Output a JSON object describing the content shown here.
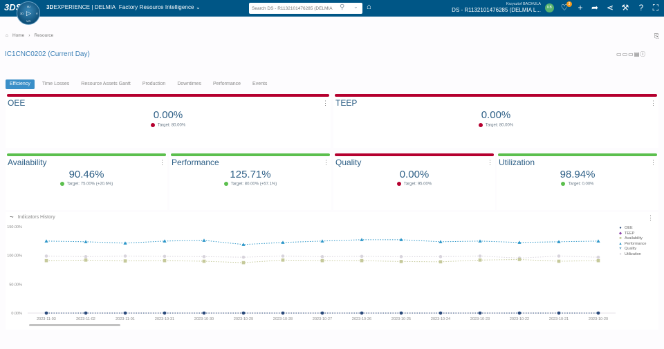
{
  "topbar": {
    "brand_logo": "3DS",
    "compass": {
      "top": "i/U",
      "left": "3D",
      "right": "V",
      "bottom": "V,R"
    },
    "app_prefix": "3D",
    "app_brand": "EXPERIENCE | DELMIA",
    "app_name": "Factory Resource Intelligence",
    "search_placeholder": "Search DS - R1132101476285 (DELMIA",
    "user_name": "Krzysztof BACHULA",
    "tenant": "DS - R1132101476285 (DELMIA L...",
    "avatar_initials": "KB",
    "notification_count": "3"
  },
  "breadcrumb": {
    "home": "Home",
    "separator": "›",
    "current": "Resource"
  },
  "page": {
    "title": "IC1CNC0202 (Current Day)"
  },
  "tabs": [
    {
      "label": "Efficiency",
      "active": true
    },
    {
      "label": "Time Losses"
    },
    {
      "label": "Resource Assets Gantt"
    },
    {
      "label": "Production"
    },
    {
      "label": "Downtimes"
    },
    {
      "label": "Performance"
    },
    {
      "label": "Events"
    }
  ],
  "colors": {
    "good": "#5cbf4e",
    "bad": "#b5002f",
    "header": "#005686",
    "accent": "#3a8fc8"
  },
  "kpis": {
    "oee": {
      "title": "OEE",
      "value": "0.00%",
      "target": "Target: 80.00%",
      "status": "bad"
    },
    "teep": {
      "title": "TEEP",
      "value": "0.00%",
      "target": "Target: 80.00%",
      "status": "bad"
    },
    "availability": {
      "title": "Availability",
      "value": "90.46%",
      "target": "Target: 75.00% (+20.6%)",
      "status": "good"
    },
    "performance": {
      "title": "Performance",
      "value": "125.71%",
      "target": "Target: 80.00% (+57.1%)",
      "status": "good"
    },
    "quality": {
      "title": "Quality",
      "value": "0.00%",
      "target": "Target: 95.00%",
      "status": "bad"
    },
    "utilization": {
      "title": "Utilization",
      "value": "98.94%",
      "target": "Target: 0.00%",
      "status": "good"
    }
  },
  "chart_panel": {
    "title": "Indicators History"
  },
  "chart_data": {
    "type": "line",
    "title": "Indicators History",
    "xlabel": "",
    "ylabel": "",
    "ylim": [
      0,
      150
    ],
    "yticks": [
      "0.00%",
      "50.00%",
      "100.00%",
      "150.00%"
    ],
    "ytick_values": [
      0,
      50,
      100,
      150
    ],
    "x": [
      "2023-11-03",
      "2023-11-02",
      "2023-11-01",
      "2023-10-31",
      "2023-10-30",
      "2023-10-29",
      "2023-10-28",
      "2023-10-27",
      "2023-10-26",
      "2023-10-25",
      "2023-10-24",
      "2023-10-23",
      "2023-10-22",
      "2023-10-21",
      "2023-10-20"
    ],
    "legend_position": "right",
    "series": [
      {
        "name": "OEE",
        "color": "#2a4a7a",
        "marker": "circle",
        "values": [
          0,
          0,
          0,
          0,
          0,
          0,
          0,
          0,
          0,
          0,
          0,
          0,
          0,
          0,
          0
        ]
      },
      {
        "name": "TEEP",
        "color": "#8a3fa8",
        "marker": "diamond",
        "values": [
          0,
          0,
          0,
          0,
          0,
          0,
          0,
          0,
          0,
          0,
          0,
          0,
          0,
          0,
          0
        ]
      },
      {
        "name": "Availability",
        "color": "#c5c99a",
        "marker": "square",
        "values": [
          91,
          92,
          90.5,
          91,
          90,
          87.5,
          92,
          91,
          91,
          89.5,
          89,
          92,
          93,
          90,
          91
        ]
      },
      {
        "name": "Performance",
        "color": "#2c96c8",
        "marker": "triangle",
        "values": [
          125,
          123.8,
          121.4,
          125,
          126.2,
          119,
          122.6,
          125,
          127.4,
          127.4,
          123.8,
          125,
          122.6,
          123.8,
          125
        ]
      },
      {
        "name": "Quality",
        "color": "#6fa8c8",
        "marker": "triangle-down",
        "values": [
          0,
          0,
          0,
          0,
          0,
          0,
          0,
          0,
          0,
          0,
          0,
          0,
          0,
          0,
          0
        ]
      },
      {
        "name": "Utilization",
        "color": "#d8d4dc",
        "marker": "circle",
        "values": [
          99,
          98,
          99,
          98.5,
          98,
          97,
          99,
          98,
          98.5,
          98,
          98,
          99,
          95.5,
          99,
          97
        ]
      }
    ]
  }
}
